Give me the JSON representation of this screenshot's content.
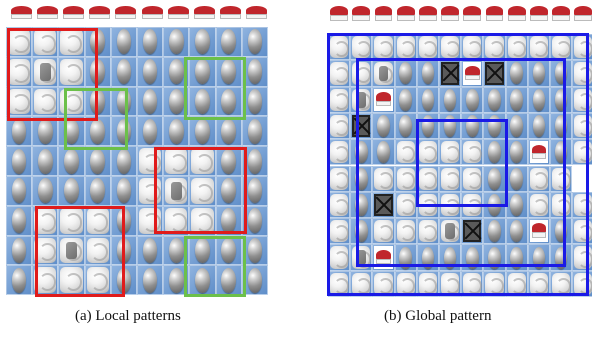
{
  "captions": {
    "a": "(a) Local patterns",
    "b": "(b) Global pattern"
  },
  "colors": {
    "red": "#e01b1b",
    "green": "#6cc04a",
    "blue": "#1a1ae6"
  },
  "panel_a": {
    "grid": [
      "CCCEEEEEEE",
      "CGCEEEEEEE",
      "CCCEEEEEEE",
      "EEEEEEEEEE",
      "EEEEECCCEE",
      "EEEEECGCEE",
      "ECCCECCCEE",
      "ECGCEEEEEE",
      "ECCCEEEEEE"
    ],
    "red_boxes": [
      "top-left",
      "right-middle",
      "bottom-left"
    ],
    "green_boxes": [
      "upper-middle",
      "top-right",
      "bottom-right"
    ]
  },
  "panel_b": {
    "grid": [
      "CCCCCCCCCCCC",
      "CCGEEXKXEEEC",
      "CGKEEEEEEEEC",
      "CXEEEEEEEEEC",
      "CEECCCCEEKEC",
      "CECCCCCEECC",
      "CEXCCCCEECCC",
      "CECCCGXEEKEC",
      "CGKEEEEEEEEC",
      "CCCCCCCCCCCC"
    ],
    "blue_boxes": [
      "outer-spiral",
      "inner-spiral"
    ]
  }
}
